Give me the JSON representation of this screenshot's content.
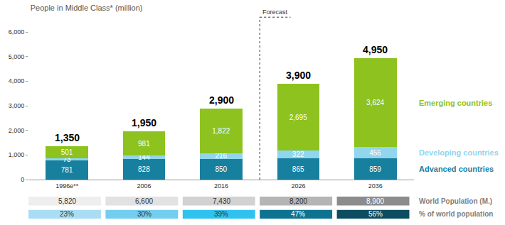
{
  "chart_data": {
    "type": "bar",
    "title": "People in Middle Class* (million)",
    "stacked": true,
    "data_labels": true,
    "grid": false,
    "categories": [
      "1996e**",
      "2006",
      "2016",
      "2026",
      "2036"
    ],
    "ylim": [
      0,
      6000
    ],
    "yticks": [
      0,
      {
        "value": 1000,
        "label": "1,000"
      },
      {
        "value": 2000,
        "label": "2,000"
      },
      {
        "value": 3000,
        "label": "3,000"
      },
      {
        "value": 4000,
        "label": "4,000"
      },
      {
        "value": 5000,
        "label": "5,000"
      },
      {
        "value": 6000,
        "label": "6,000"
      }
    ],
    "series": [
      {
        "name": "Advanced countries",
        "color": "#17809f",
        "values": [
          781,
          828,
          850,
          865,
          859
        ]
      },
      {
        "name": "Developing countries",
        "color": "#8fd6ee",
        "values": [
          73,
          144,
          216,
          322,
          456
        ]
      },
      {
        "name": "Emerging countries",
        "color": "#8dc21f",
        "values": [
          501,
          981,
          1822,
          2695,
          3624
        ],
        "value_labels": [
          "501",
          "981",
          "1,822",
          "2,695",
          "3,624"
        ]
      }
    ],
    "totals": {
      "values": [
        1350,
        1950,
        2900,
        3900,
        4950
      ],
      "value_labels": [
        "1,350",
        "1,950",
        "2,900",
        "3,900",
        "4,950"
      ]
    },
    "annotations": [
      {
        "text": "Forecast",
        "category": "2026"
      }
    ],
    "rows": [
      {
        "label": "World Population (M.)",
        "values": [
          5820,
          6600,
          7430,
          8200,
          8900
        ],
        "value_labels": [
          "5,820",
          "6,600",
          "7,430",
          "8,200",
          "8,900"
        ]
      },
      {
        "label": "% of world population",
        "values": [
          23,
          30,
          39,
          47,
          56
        ],
        "value_labels": [
          "23%",
          "30%",
          "39%",
          "47%",
          "56%"
        ]
      }
    ]
  }
}
